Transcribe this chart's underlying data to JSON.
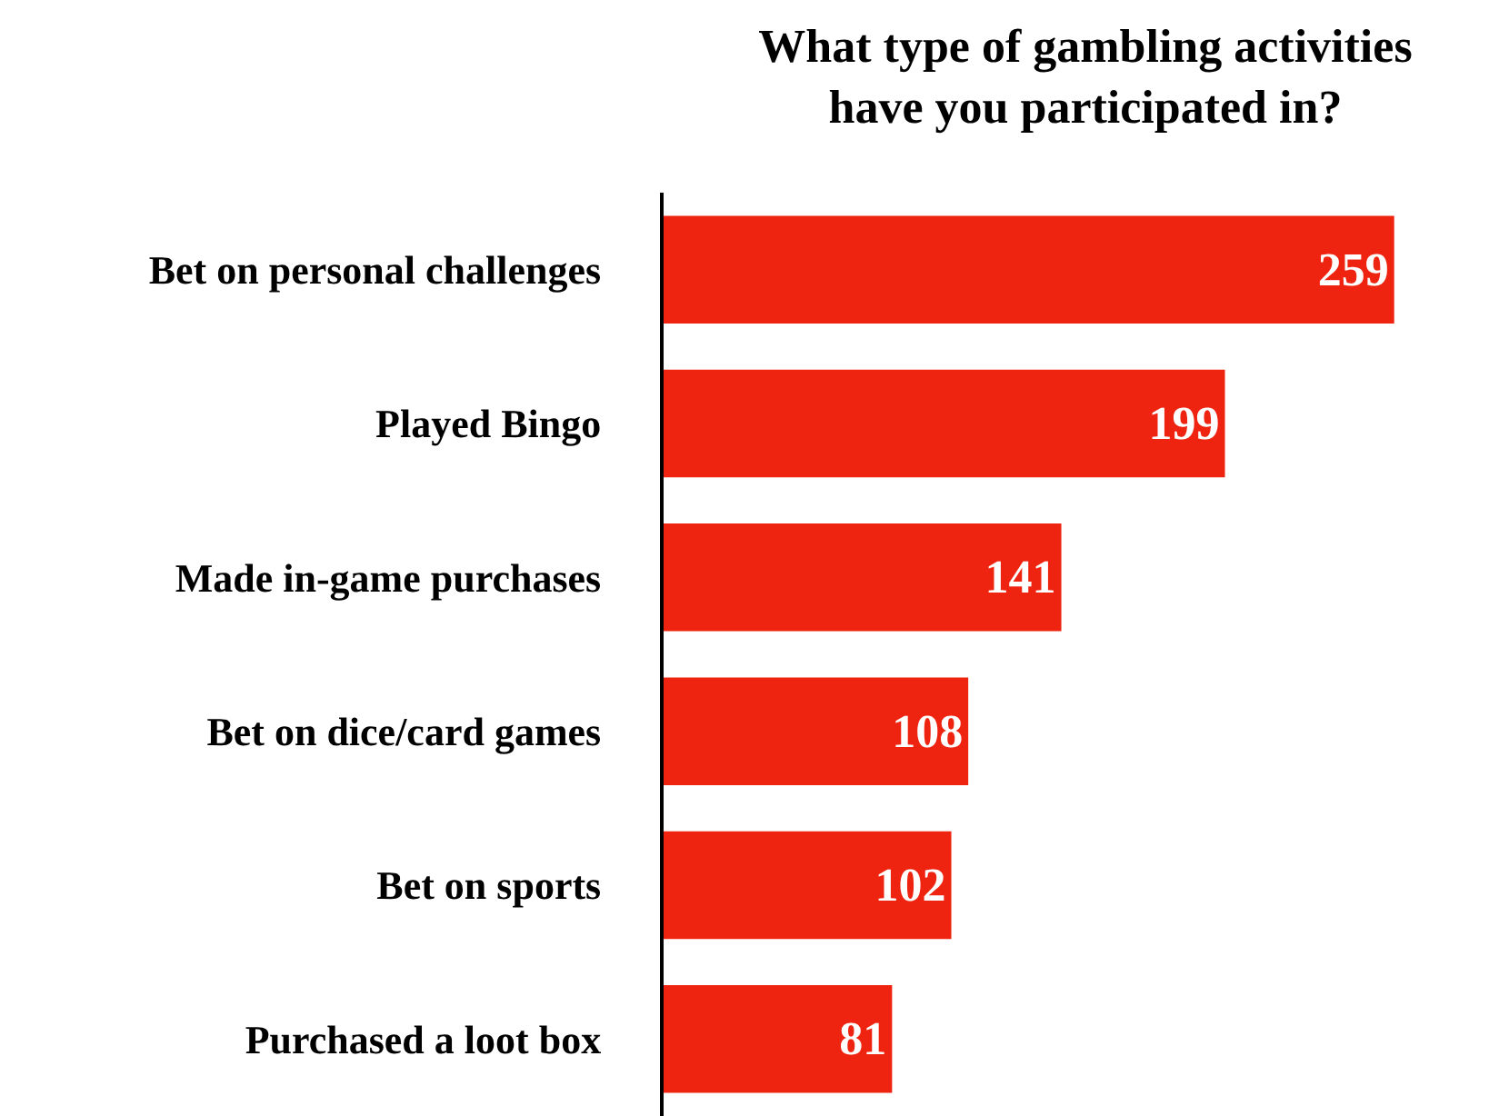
{
  "chart_data": {
    "type": "bar",
    "orientation": "horizontal",
    "title": "What type of gambling activities\nhave you participated in?",
    "categories": [
      "Bet on personal challenges",
      "Played Bingo",
      "Made in-game purchases",
      "Bet on dice/card games",
      "Bet on sports",
      "Purchased a loot box"
    ],
    "values": [
      259,
      199,
      141,
      108,
      102,
      81
    ],
    "color": "#ee2410",
    "data_labels": true
  }
}
